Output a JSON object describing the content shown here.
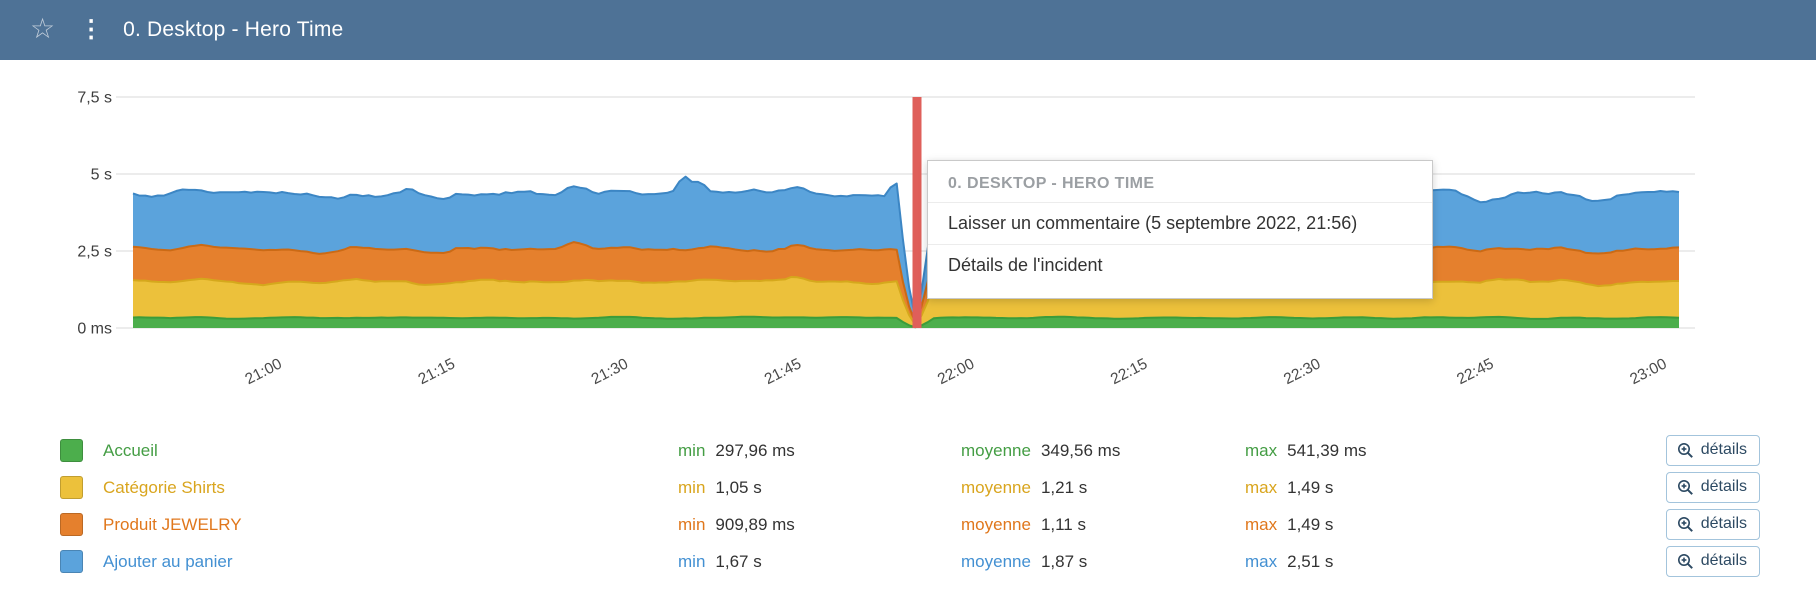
{
  "header": {
    "title": "0. Desktop - Hero Time",
    "star_icon_glyph": "☆",
    "kebab_icon_glyph": "⋮"
  },
  "incident_menu": {
    "title": "0. DESKTOP - HERO TIME",
    "items": [
      "Laisser un commentaire (5 septembre 2022, 21:56)",
      "Détails de l'incident"
    ]
  },
  "chart_data": {
    "type": "area",
    "stacked": true,
    "title": "",
    "x_ticks": [
      "21:00",
      "21:15",
      "21:30",
      "21:45",
      "22:00",
      "22:15",
      "22:30",
      "22:45",
      "23:00"
    ],
    "y_ticks": [
      "7,5 s",
      "5 s",
      "2,5 s",
      "0 ms"
    ],
    "ylim_seconds": [
      0,
      7.5
    ],
    "incident": {
      "time": "21:56",
      "color": "#df5f5a"
    },
    "series": [
      {
        "name": "Accueil",
        "fill": "#4cae4c",
        "stroke": "#3b9c3b",
        "min_s": 0.298,
        "avg_s": 0.3496,
        "max_s": 0.5414
      },
      {
        "name": "Catégorie Shirts",
        "fill": "#ecc13b",
        "stroke": "#d5a81c",
        "min_s": 1.05,
        "avg_s": 1.21,
        "max_s": 1.49
      },
      {
        "name": "Produit JEWELRY",
        "fill": "#e5802d",
        "stroke": "#cb6a15",
        "min_s": 0.91,
        "avg_s": 1.11,
        "max_s": 1.49
      },
      {
        "name": "Ajouter au panier",
        "fill": "#5ba3dc",
        "stroke": "#3c86c4",
        "min_s": 1.67,
        "avg_s": 1.87,
        "max_s": 2.51
      }
    ],
    "legend_position": "bottom",
    "grid": true
  },
  "legend": {
    "min_label": "min",
    "avg_label": "moyenne",
    "max_label": "max",
    "details_label": "détails",
    "rows": [
      {
        "name": "Accueil",
        "swatch": "#4cae4c",
        "text_color": "#449d44",
        "min": "297,96 ms",
        "avg": "349,56 ms",
        "max": "541,39 ms"
      },
      {
        "name": "Catégorie Shirts",
        "swatch": "#ecc13b",
        "text_color": "#d9a51e",
        "min": "1,05 s",
        "avg": "1,21 s",
        "max": "1,49 s"
      },
      {
        "name": "Produit JEWELRY",
        "swatch": "#e5802d",
        "text_color": "#e0771c",
        "min": "909,89 ms",
        "avg": "1,11 s",
        "max": "1,49 s"
      },
      {
        "name": "Ajouter au panier",
        "swatch": "#5ba3dc",
        "text_color": "#4390d2",
        "min": "1,67 s",
        "avg": "1,87 s",
        "max": "2,51 s"
      }
    ]
  }
}
